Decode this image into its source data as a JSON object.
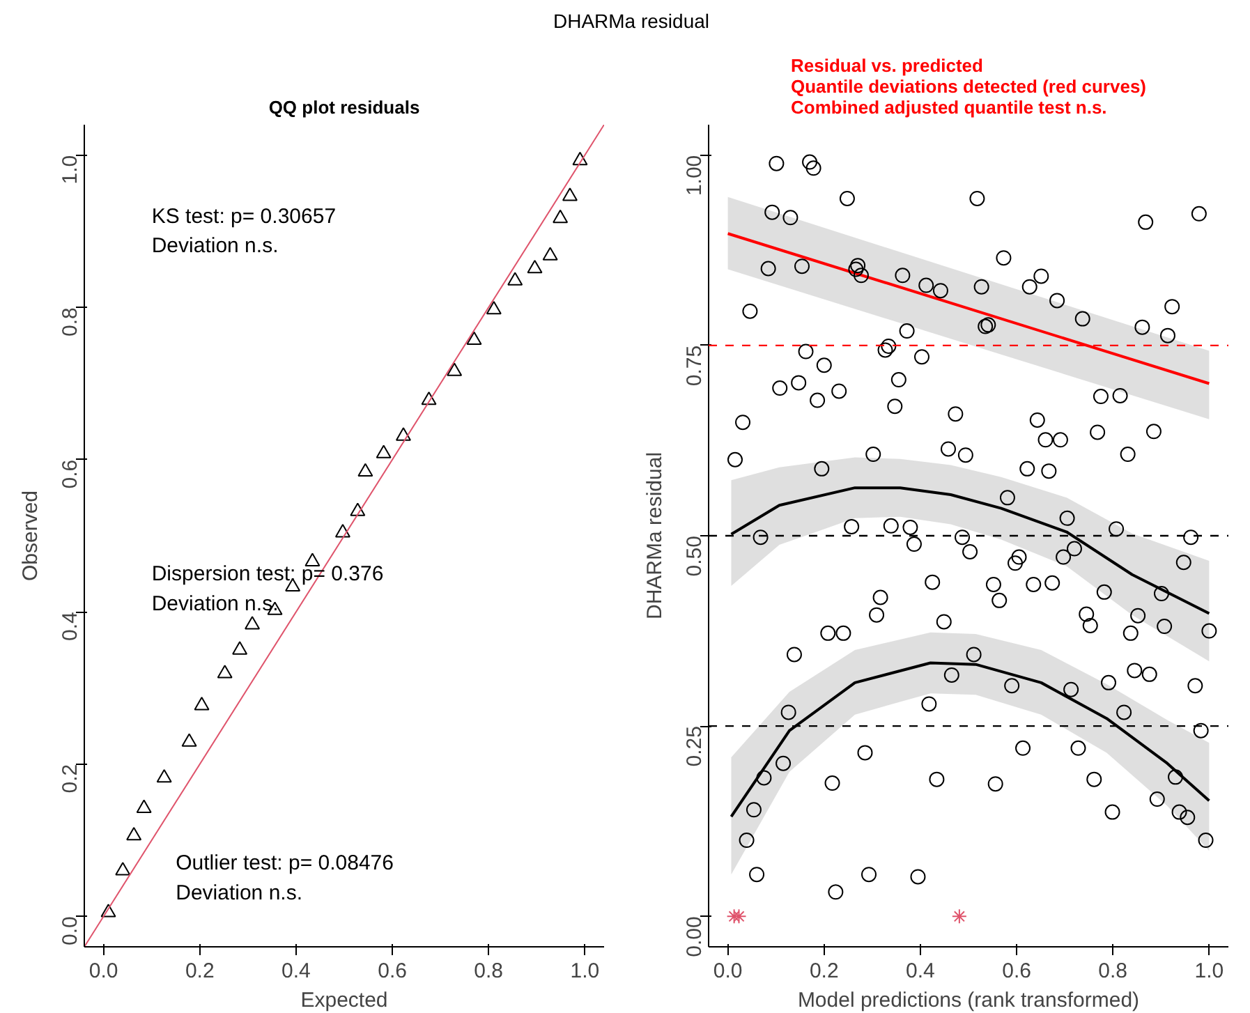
{
  "chart_data": [
    {
      "type": "scatter",
      "title": "QQ plot residuals",
      "xlabel": "Expected",
      "ylabel": "Observed",
      "annotations": [
        "DHARMa residual",
        "KS test: p= 0.30657\nDeviation  n.s.",
        "Dispersion test: p= 0.376\nDeviation  n.s.",
        "Outlier test: p= 0.08476\nDeviation  n.s."
      ],
      "xlim": [
        -0.04,
        1.04
      ],
      "ylim": [
        -0.04,
        1.04
      ],
      "xticks": [
        {
          "value": 0,
          "label": "0.0"
        },
        {
          "value": 0.2,
          "label": "0.2"
        },
        {
          "value": 0.4,
          "label": "0.4"
        },
        {
          "value": 0.6,
          "label": "0.6"
        },
        {
          "value": 0.8,
          "label": "0.8"
        },
        {
          "value": 1,
          "label": "1.0"
        }
      ],
      "yticks": [
        {
          "value": 0,
          "label": "0.0"
        },
        {
          "value": 0.2,
          "label": "0.2"
        },
        {
          "value": 0.4,
          "label": "0.4"
        },
        {
          "value": 0.6,
          "label": "0.6"
        },
        {
          "value": 0.8,
          "label": "0.8"
        },
        {
          "value": 1,
          "label": "1.0"
        }
      ],
      "series": [
        {
          "type": "scatter",
          "marker": "triangle",
          "color": "#000000",
          "x": [
            0.01,
            0.04,
            0.063,
            0.084,
            0.126,
            0.178,
            0.204,
            0.252,
            0.283,
            0.309,
            0.356,
            0.393,
            0.434,
            0.497,
            0.528,
            0.544,
            0.582,
            0.623,
            0.676,
            0.729,
            0.77,
            0.811,
            0.855,
            0.896,
            0.928,
            0.949,
            0.969,
            0.99
          ],
          "values": [
            0.005,
            0.06,
            0.106,
            0.142,
            0.182,
            0.229,
            0.277,
            0.319,
            0.35,
            0.383,
            0.402,
            0.433,
            0.466,
            0.504,
            0.532,
            0.584,
            0.608,
            0.631,
            0.678,
            0.716,
            0.757,
            0.797,
            0.835,
            0.851,
            0.868,
            0.917,
            0.946,
            0.993
          ]
        },
        {
          "type": "line",
          "color": "#df536b",
          "x": [
            -0.04,
            1.04
          ],
          "values": [
            -0.04,
            1.04
          ]
        }
      ]
    },
    {
      "type": "scatter",
      "title": "Residual vs. predicted\nQuantile deviations detected (red curves)\nCombined adjusted quantile test n.s.",
      "xlabel": "Model predictions (rank transformed)",
      "ylabel": "DHARMa residual",
      "xlim": [
        -0.04,
        1.04
      ],
      "ylim": [
        -0.04,
        1.04
      ],
      "xticks": [
        {
          "value": 0,
          "label": "0.0"
        },
        {
          "value": 0.2,
          "label": "0.2"
        },
        {
          "value": 0.4,
          "label": "0.4"
        },
        {
          "value": 0.6,
          "label": "0.6"
        },
        {
          "value": 0.8,
          "label": "0.8"
        },
        {
          "value": 1,
          "label": "1.0"
        }
      ],
      "yticks": [
        {
          "value": 0,
          "label": "0.00"
        },
        {
          "value": 0.25,
          "label": "0.25"
        },
        {
          "value": 0.5,
          "label": "0.50"
        },
        {
          "value": 0.75,
          "label": "0.75"
        },
        {
          "value": 1,
          "label": "1.00"
        }
      ],
      "ref_lines": [
        {
          "axis": "y",
          "value": 0.25,
          "color": "#000000",
          "line_style": "dashed"
        },
        {
          "axis": "y",
          "value": 0.5,
          "color": "#000000",
          "line_style": "dashed"
        },
        {
          "axis": "y",
          "value": 0.75,
          "color": "#ff0000",
          "line_style": "dashed"
        }
      ],
      "series": [
        {
          "type": "line",
          "color": "#ff0000",
          "x": [
            0,
            1
          ],
          "values": [
            0.897,
            0.7
          ],
          "lower": [
            0.85,
            0.653
          ],
          "upper": [
            0.945,
            0.743
          ]
        },
        {
          "type": "line",
          "color": "#000000",
          "x": [
            0.007,
            0.107,
            0.264,
            0.358,
            0.463,
            0.568,
            0.704,
            0.84,
            1
          ],
          "values": [
            0.502,
            0.54,
            0.563,
            0.563,
            0.554,
            0.536,
            0.505,
            0.449,
            0.398
          ],
          "lower": [
            0.434,
            0.488,
            0.523,
            0.525,
            0.515,
            0.495,
            0.46,
            0.396,
            0.335
          ],
          "upper": [
            0.573,
            0.59,
            0.603,
            0.601,
            0.593,
            0.577,
            0.55,
            0.503,
            0.467
          ]
        },
        {
          "type": "line",
          "color": "#000000",
          "x": [
            0.007,
            0.128,
            0.264,
            0.421,
            0.515,
            0.651,
            0.787,
            0.913,
            1
          ],
          "values": [
            0.131,
            0.244,
            0.307,
            0.333,
            0.331,
            0.307,
            0.26,
            0.201,
            0.152
          ],
          "lower": [
            0.055,
            0.19,
            0.265,
            0.293,
            0.291,
            0.265,
            0.215,
            0.145,
            0.086
          ],
          "upper": [
            0.209,
            0.295,
            0.35,
            0.373,
            0.371,
            0.35,
            0.305,
            0.258,
            0.228
          ]
        },
        {
          "type": "scatter",
          "marker": "circle",
          "color": "#000000",
          "x": [
            0.015,
            0.031,
            0.046,
            0.06,
            0.039,
            0.054,
            0.068,
            0.075,
            0.084,
            0.092,
            0.101,
            0.108,
            0.115,
            0.126,
            0.13,
            0.138,
            0.147,
            0.154,
            0.162,
            0.17,
            0.178,
            0.186,
            0.195,
            0.2,
            0.208,
            0.217,
            0.224,
            0.231,
            0.24,
            0.248,
            0.257,
            0.266,
            0.27,
            0.277,
            0.285,
            0.293,
            0.302,
            0.309,
            0.317,
            0.327,
            0.334,
            0.339,
            0.347,
            0.355,
            0.363,
            0.372,
            0.379,
            0.387,
            0.395,
            0.403,
            0.412,
            0.418,
            0.425,
            0.434,
            0.442,
            0.449,
            0.458,
            0.465,
            0.473,
            0.487,
            0.494,
            0.503,
            0.511,
            0.518,
            0.527,
            0.535,
            0.541,
            0.552,
            0.556,
            0.564,
            0.573,
            0.581,
            0.59,
            0.597,
            0.605,
            0.613,
            0.622,
            0.627,
            0.635,
            0.643,
            0.651,
            0.66,
            0.667,
            0.674,
            0.684,
            0.691,
            0.697,
            0.705,
            0.713,
            0.72,
            0.728,
            0.737,
            0.745,
            0.753,
            0.761,
            0.768,
            0.775,
            0.782,
            0.791,
            0.799,
            0.807,
            0.815,
            0.823,
            0.831,
            0.837,
            0.845,
            0.852,
            0.861,
            0.868,
            0.876,
            0.885,
            0.892,
            0.901,
            0.907,
            0.914,
            0.923,
            0.93,
            0.938,
            0.947,
            0.955,
            0.962,
            0.971,
            0.979,
            0.983,
            0.993,
            1.0
          ],
          "values": [
            0.6,
            0.649,
            0.795,
            0.055,
            0.1,
            0.14,
            0.498,
            0.182,
            0.851,
            0.925,
            0.989,
            0.694,
            0.201,
            0.268,
            0.918,
            0.344,
            0.701,
            0.854,
            0.742,
            0.991,
            0.983,
            0.678,
            0.588,
            0.724,
            0.372,
            0.175,
            0.032,
            0.69,
            0.372,
            0.943,
            0.512,
            0.85,
            0.855,
            0.842,
            0.215,
            0.055,
            0.607,
            0.396,
            0.419,
            0.744,
            0.749,
            0.513,
            0.67,
            0.705,
            0.842,
            0.769,
            0.511,
            0.489,
            0.052,
            0.735,
            0.829,
            0.279,
            0.439,
            0.18,
            0.822,
            0.387,
            0.614,
            0.317,
            0.66,
            0.498,
            0.606,
            0.479,
            0.344,
            0.943,
            0.827,
            0.775,
            0.777,
            0.436,
            0.174,
            0.415,
            0.865,
            0.55,
            0.303,
            0.464,
            0.472,
            0.221,
            0.588,
            0.827,
            0.436,
            0.652,
            0.841,
            0.626,
            0.585,
            0.438,
            0.809,
            0.626,
            0.472,
            0.523,
            0.298,
            0.483,
            0.221,
            0.785,
            0.397,
            0.382,
            0.18,
            0.636,
            0.683,
            0.426,
            0.307,
            0.137,
            0.509,
            0.684,
            0.268,
            0.607,
            0.372,
            0.323,
            0.395,
            0.774,
            0.912,
            0.318,
            0.637,
            0.154,
            0.424,
            0.381,
            0.763,
            0.801,
            0.183,
            0.137,
            0.465,
            0.13,
            0.498,
            0.303,
            0.923,
            0.244,
            0.1,
            0.375
          ]
        },
        {
          "type": "scatter",
          "marker": "cross",
          "color": "#df536b",
          "x": [
            0.013,
            0.023,
            0.481
          ],
          "values": [
            0,
            0,
            0
          ]
        }
      ]
    }
  ]
}
